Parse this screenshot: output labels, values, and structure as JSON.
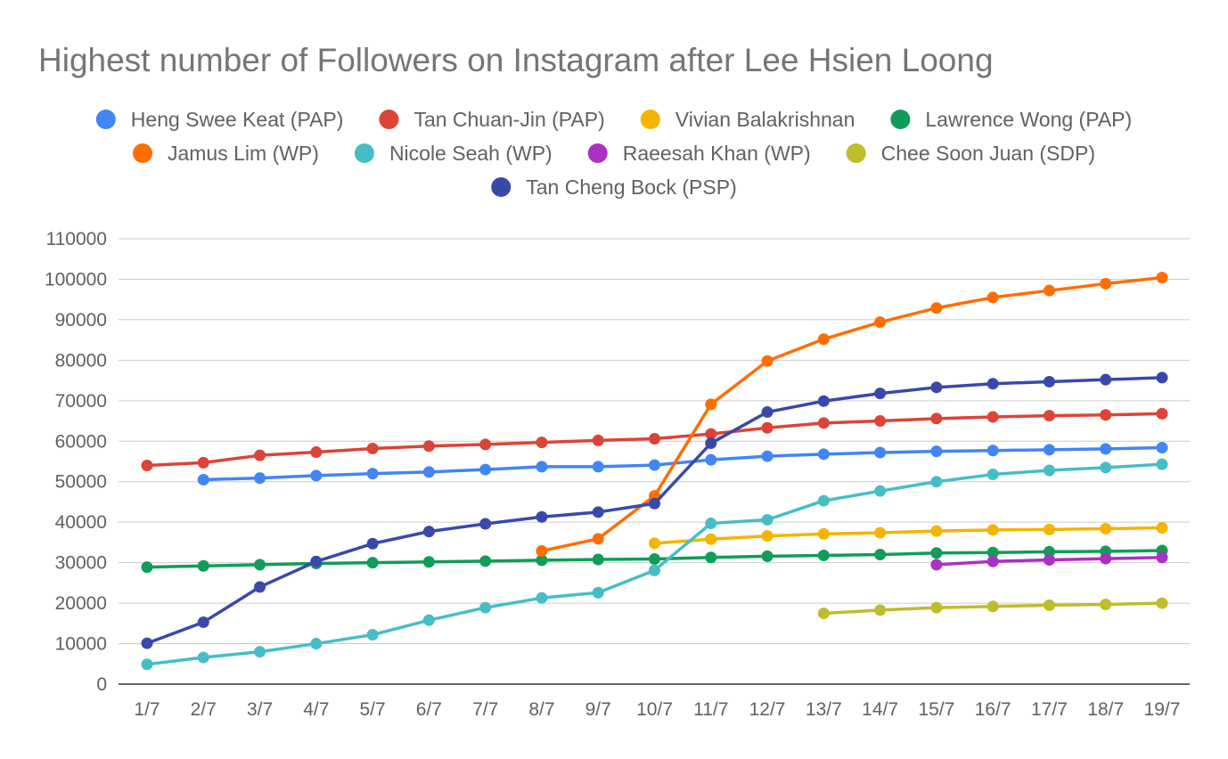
{
  "chart_data": {
    "type": "line",
    "title": "Highest number of Followers on Instagram after Lee Hsien Loong",
    "xlabel": "",
    "ylabel": "",
    "categories": [
      "1/7",
      "2/7",
      "3/7",
      "4/7",
      "5/7",
      "6/7",
      "7/7",
      "8/7",
      "9/7",
      "10/7",
      "11/7",
      "12/7",
      "13/7",
      "14/7",
      "15/7",
      "16/7",
      "17/7",
      "18/7",
      "19/7"
    ],
    "ylim": [
      0,
      110000
    ],
    "yticks": [
      0,
      10000,
      20000,
      30000,
      40000,
      50000,
      60000,
      70000,
      80000,
      90000,
      100000,
      110000
    ],
    "grid": true,
    "legend_position": "top",
    "series": [
      {
        "name": "Heng Swee Keat (PAP)",
        "color": "#4285f4",
        "values": [
          null,
          50500,
          50900,
          51500,
          52000,
          52400,
          53000,
          53700,
          53700,
          54100,
          55400,
          56300,
          56800,
          57200,
          57500,
          57700,
          57900,
          58100,
          58400
        ]
      },
      {
        "name": "Tan Chuan-Jin (PAP)",
        "color": "#db4437",
        "values": [
          54000,
          54700,
          56500,
          57300,
          58200,
          58800,
          59200,
          59700,
          60200,
          60600,
          61800,
          63300,
          64500,
          65000,
          65600,
          66000,
          66300,
          66500,
          66800
        ]
      },
      {
        "name": "Vivian Balakrishnan",
        "color": "#f4b400",
        "values": [
          null,
          null,
          null,
          null,
          null,
          null,
          null,
          null,
          null,
          34800,
          35800,
          36600,
          37100,
          37400,
          37800,
          38100,
          38200,
          38400,
          38600
        ]
      },
      {
        "name": "Lawrence Wong (PAP)",
        "color": "#0f9d58",
        "values": [
          28900,
          29200,
          29500,
          29800,
          30000,
          30200,
          30400,
          30600,
          30800,
          30900,
          31300,
          31600,
          31800,
          32000,
          32400,
          32500,
          32700,
          32800,
          33000
        ]
      },
      {
        "name": "Jamus Lim (WP)",
        "color": "#ff6d01",
        "values": [
          null,
          null,
          null,
          null,
          null,
          null,
          null,
          32900,
          35900,
          46500,
          69100,
          79800,
          85200,
          89400,
          92900,
          95500,
          97200,
          98900,
          100400
        ]
      },
      {
        "name": "Nicole Seah (WP)",
        "color": "#46bdc6",
        "values": [
          4900,
          6600,
          8000,
          10000,
          12200,
          15800,
          18900,
          21300,
          22600,
          28100,
          39700,
          40600,
          45300,
          47700,
          50000,
          51800,
          52800,
          53500,
          54300
        ]
      },
      {
        "name": "Raeesah Khan (WP)",
        "color": "#ab30c4",
        "values": [
          null,
          null,
          null,
          null,
          null,
          null,
          null,
          null,
          null,
          null,
          null,
          null,
          null,
          null,
          29500,
          30300,
          30700,
          31000,
          31300
        ]
      },
      {
        "name": "Chee Soon Juan (SDP)",
        "color": "#c0bc2b",
        "values": [
          null,
          null,
          null,
          null,
          null,
          null,
          null,
          null,
          null,
          null,
          null,
          null,
          17500,
          18300,
          18900,
          19200,
          19500,
          19700,
          20000
        ]
      },
      {
        "name": "Tan Cheng Bock (PSP)",
        "color": "#3949ab",
        "values": [
          10100,
          15300,
          24000,
          30300,
          34700,
          37700,
          39600,
          41300,
          42500,
          44600,
          59500,
          67200,
          69900,
          71800,
          73300,
          74200,
          74700,
          75200,
          75700
        ]
      }
    ]
  }
}
